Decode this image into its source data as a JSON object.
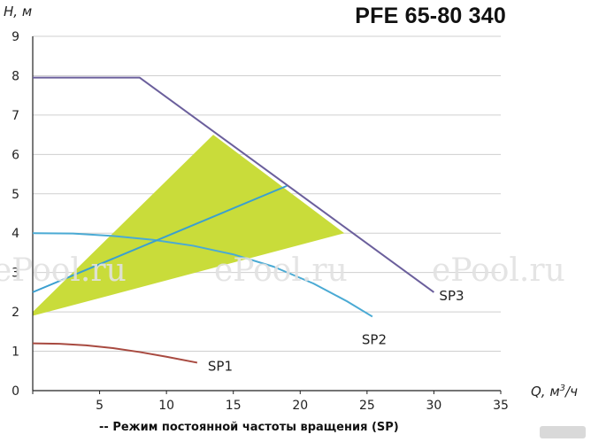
{
  "chart_data": {
    "type": "line",
    "title": "PFE 65-80 340",
    "ylabel_text": "H, м",
    "xlabel_prefix": "Q, м",
    "xlabel_sup": "3",
    "xlabel_suffix": "/ч",
    "caption": "-- Режим постоянной частоты вращения (SP)",
    "xlim": [
      0,
      35
    ],
    "ylim": [
      0,
      9
    ],
    "x_ticks": [
      0,
      5,
      10,
      15,
      20,
      25,
      30,
      35
    ],
    "y_ticks": [
      0,
      1,
      2,
      3,
      4,
      5,
      6,
      7,
      8,
      9
    ],
    "grid": true,
    "series": [
      {
        "name": "SP1",
        "color": "#a84a40",
        "x": [
          0,
          2,
          4,
          6,
          8,
          10,
          12.3
        ],
        "y": [
          1.2,
          1.19,
          1.15,
          1.08,
          0.98,
          0.86,
          0.71
        ]
      },
      {
        "name": "SP2",
        "color": "#4aaad4",
        "x": [
          0,
          3,
          6,
          9,
          12,
          15,
          18,
          21,
          23.5,
          25.4
        ],
        "y": [
          4.0,
          3.99,
          3.93,
          3.83,
          3.68,
          3.46,
          3.15,
          2.72,
          2.27,
          1.88
        ]
      },
      {
        "name": "SP3",
        "color": "#6b5f9c",
        "x": [
          0,
          8,
          30
        ],
        "y": [
          7.95,
          7.95,
          2.5
        ]
      },
      {
        "name": "",
        "color": "#3a9fd0",
        "x": [
          0,
          19
        ],
        "y": [
          2.5,
          5.2
        ]
      }
    ],
    "region": {
      "color": "#c9dc3a",
      "x": [
        0,
        13.5,
        23.3,
        0
      ],
      "y": [
        2.0,
        6.5,
        4.0,
        1.9
      ]
    }
  },
  "watermarks": [
    "ePool.ru",
    "ePool.ru",
    "ePool.ru"
  ]
}
